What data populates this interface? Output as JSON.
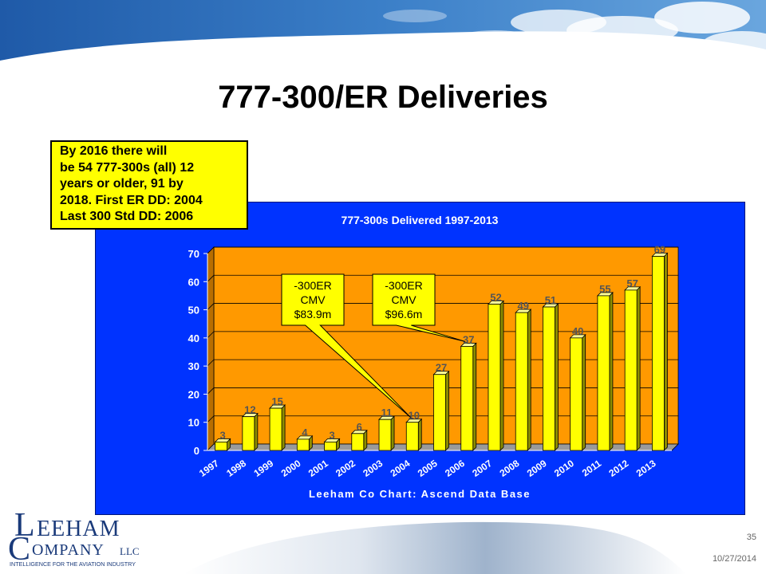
{
  "slide": {
    "title": "777-300/ER Deliveries",
    "page_number": "35",
    "date": "10/27/2014"
  },
  "note": {
    "text": "By 2016 there will\nbe 54 777-300s (all) 12\nyears or older, 91 by\n2018. First ER DD: 2004\nLast 300 Std DD: 2006"
  },
  "logo": {
    "line1": "EEHAM",
    "line2": "OMPANY",
    "llc": "LLC",
    "initial1": "L",
    "initial2": "C",
    "tagline": "INTELLIGENCE FOR THE AVIATION INDUSTRY"
  },
  "colors": {
    "panel": "#0033ff",
    "plot_area": "#ff9900",
    "bar_face": "#ffff00",
    "bar_side": "#8c8c00",
    "callout": "#ffff00"
  },
  "chart_data": {
    "type": "bar",
    "title": "777-300s Delivered 1997-2013",
    "xlabel": "Leeham Co Chart: Ascend Data Base",
    "ylabel": "",
    "categories": [
      "1997",
      "1998",
      "1999",
      "2000",
      "2001",
      "2002",
      "2003",
      "2004",
      "2005",
      "2006",
      "2007",
      "2008",
      "2009",
      "2010",
      "2011",
      "2012",
      "2013"
    ],
    "values": [
      3,
      12,
      15,
      4,
      3,
      6,
      11,
      10,
      27,
      37,
      52,
      49,
      51,
      40,
      55,
      57,
      69
    ],
    "value_labels": [
      "3",
      "12",
      "15",
      "4",
      "3",
      "6",
      "11",
      "10",
      "27",
      "37",
      "52",
      "49",
      "51",
      "40",
      "55",
      "57",
      "69"
    ],
    "ylim": [
      0,
      70
    ],
    "yticks": [
      0,
      10,
      20,
      30,
      40,
      50,
      60,
      70
    ],
    "grid": true,
    "legend": "none",
    "annotations": [
      {
        "lines": [
          "-300ER",
          "CMV",
          "$83.9m"
        ],
        "points_to": "2004"
      },
      {
        "lines": [
          "-300ER",
          "CMV",
          "$96.6m"
        ],
        "points_to": "2006"
      }
    ]
  }
}
